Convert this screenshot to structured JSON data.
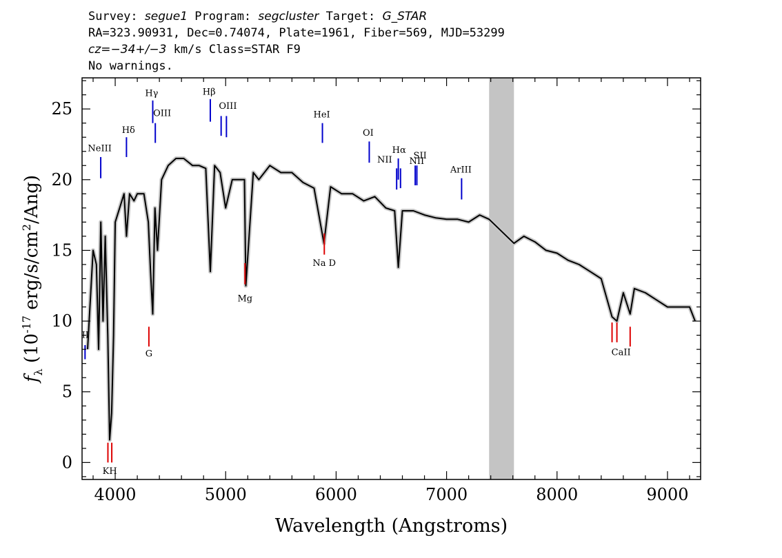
{
  "header": {
    "line1": {
      "survey_label": "Survey: ",
      "survey": "segue1",
      "program_label": " Program: ",
      "program": "segcluster",
      "target_label": " Target: ",
      "target": "G_STAR"
    },
    "line2": "RA=323.90931, Dec=0.74074, Plate=1961, Fiber=569, MJD=53299",
    "line3": {
      "cz": "cz=",
      "cz_val": "−34+/−3",
      "rest": " km/s Class=STAR F9"
    },
    "line4": "No warnings."
  },
  "chart_data": {
    "type": "line",
    "xlabel": "Wavelength (Angstroms)",
    "ylabel": "f_λ (10^-17 erg/s/cm^2/Ang)",
    "xlim": [
      3700,
      9300
    ],
    "ylim": [
      -1.2,
      27.2
    ],
    "xticks": [
      4000,
      5000,
      6000,
      7000,
      8000,
      9000
    ],
    "yticks": [
      0,
      5,
      10,
      15,
      20,
      25
    ],
    "masked_region": [
      7385,
      7610
    ],
    "series": [
      {
        "color": "#000000",
        "x": [
          3750,
          3800,
          3830,
          3850,
          3870,
          3890,
          3910,
          3933,
          3950,
          3968,
          3985,
          4000,
          4040,
          4080,
          4102,
          4130,
          4170,
          4200,
          4260,
          4300,
          4320,
          4340,
          4360,
          4383,
          4420,
          4480,
          4550,
          4620,
          4700,
          4760,
          4820,
          4861,
          4900,
          4950,
          5000,
          5060,
          5120,
          5170,
          5183,
          5250,
          5300,
          5400,
          5500,
          5600,
          5700,
          5800,
          5890,
          5950,
          6050,
          6150,
          6250,
          6350,
          6450,
          6530,
          6563,
          6600,
          6700,
          6800,
          6900,
          7000,
          7100,
          7200,
          7300,
          7385,
          7610,
          7700,
          7800,
          7900,
          8000,
          8100,
          8200,
          8300,
          8400,
          8498,
          8542,
          8600,
          8662,
          8700,
          8800,
          8900,
          9000,
          9100,
          9200,
          9250
        ],
        "y": [
          8,
          15,
          14,
          8,
          17,
          10,
          16,
          9,
          1.6,
          3.5,
          9,
          17,
          18,
          19,
          16,
          19,
          18.5,
          19,
          19,
          17,
          13.5,
          10.5,
          18,
          15,
          20,
          21,
          21.5,
          21.5,
          21,
          21,
          20.8,
          13.5,
          21,
          20.5,
          18,
          20,
          20,
          20,
          12.5,
          20.5,
          20,
          21,
          20.5,
          20.5,
          19.8,
          19.4,
          15.5,
          19.5,
          19,
          19,
          18.5,
          18.8,
          18,
          17.8,
          13.8,
          17.8,
          17.8,
          17.5,
          17.3,
          17.2,
          17.2,
          17,
          17.5,
          17.2,
          15.5,
          16,
          15.6,
          15,
          14.8,
          14.3,
          14,
          13.5,
          13,
          10.3,
          10,
          12,
          10.5,
          12.3,
          12,
          11.5,
          11,
          11,
          11,
          10
        ]
      }
    ],
    "lines_blue": [
      {
        "label": "OII",
        "x": 3727,
        "y0": 7.3,
        "y1": 8.3
      },
      {
        "label": "NeIII",
        "x": 3869,
        "y0": 20.1,
        "y1": 21.6
      },
      {
        "label": "Hδ",
        "x": 4102,
        "y0": 21.6,
        "y1": 23
      },
      {
        "label": "Hγ",
        "x": 4340,
        "y0": 24,
        "y1": 25.6
      },
      {
        "label": "OIII",
        "x": 4363,
        "y0": 22.6,
        "y1": 24
      },
      {
        "label": "Hβ",
        "x": 4861,
        "y0": 24.1,
        "y1": 25.7
      },
      {
        "label": "OIII",
        "x": 4959,
        "y0": 23.1,
        "y1": 24.5
      },
      {
        "label": "OIII",
        "x": 5007,
        "y0": 23,
        "y1": 24.5
      },
      {
        "label": "HeI",
        "x": 5876,
        "y0": 22.6,
        "y1": 24
      },
      {
        "label": "OI",
        "x": 6300,
        "y0": 21.2,
        "y1": 22.7
      },
      {
        "label": "NII",
        "x": 6548,
        "y0": 19.3,
        "y1": 20.8
      },
      {
        "label": "Hα",
        "x": 6563,
        "y0": 20,
        "y1": 21.5
      },
      {
        "label": "NII",
        "x": 6583,
        "y0": 19.4,
        "y1": 20.8
      },
      {
        "label": "SII",
        "x": 6716,
        "y0": 19.6,
        "y1": 21
      },
      {
        "label": "SII",
        "x": 6731,
        "y0": 19.6,
        "y1": 21
      },
      {
        "label": "ArIII",
        "x": 7136,
        "y0": 18.6,
        "y1": 20.1
      }
    ],
    "lines_red": [
      {
        "x": 3934,
        "y0": 0,
        "y1": 1.4
      },
      {
        "x": 3969,
        "y0": 0,
        "y1": 1.4
      },
      {
        "x": 4305,
        "y0": 8.2,
        "y1": 9.6
      },
      {
        "x": 5175,
        "y0": 12.6,
        "y1": 14.1
      },
      {
        "x": 5893,
        "y0": 14.7,
        "y1": 16.2
      },
      {
        "x": 8498,
        "y0": 8.5,
        "y1": 9.9
      },
      {
        "x": 8542,
        "y0": 8.5,
        "y1": 9.9
      },
      {
        "x": 8662,
        "y0": 8.2,
        "y1": 9.6
      }
    ],
    "annotations_blue": [
      {
        "text": "II",
        "x": 3730,
        "y": 8.8
      },
      {
        "text": "NeIII",
        "x": 3860,
        "y": 22
      },
      {
        "text": "Hδ",
        "x": 4120,
        "y": 23.3
      },
      {
        "text": "Hγ",
        "x": 4330,
        "y": 25.9
      },
      {
        "text": "OIII",
        "x": 4425,
        "y": 24.5
      },
      {
        "text": "Hβ",
        "x": 4850,
        "y": 26
      },
      {
        "text": "OIII",
        "x": 5020,
        "y": 25
      },
      {
        "text": "HeI",
        "x": 5870,
        "y": 24.4
      },
      {
        "text": "OI",
        "x": 6290,
        "y": 23.1
      },
      {
        "text": "NII",
        "x": 6440,
        "y": 21.2
      },
      {
        "text": "Hα",
        "x": 6570,
        "y": 21.9
      },
      {
        "text": "SII",
        "x": 6760,
        "y": 21.5
      },
      {
        "text": "NII",
        "x": 6730,
        "y": 21.1
      },
      {
        "text": "ArIII",
        "x": 7130,
        "y": 20.5
      }
    ],
    "annotations_red": [
      {
        "text": "KH",
        "x": 3951,
        "y": -0.8
      },
      {
        "text": "G",
        "x": 4305,
        "y": 7.5
      },
      {
        "text": "Mg",
        "x": 5175,
        "y": 11.4
      },
      {
        "text": "Na D",
        "x": 5893,
        "y": 13.9
      },
      {
        "text": "CaII",
        "x": 8580,
        "y": 7.6
      }
    ]
  }
}
